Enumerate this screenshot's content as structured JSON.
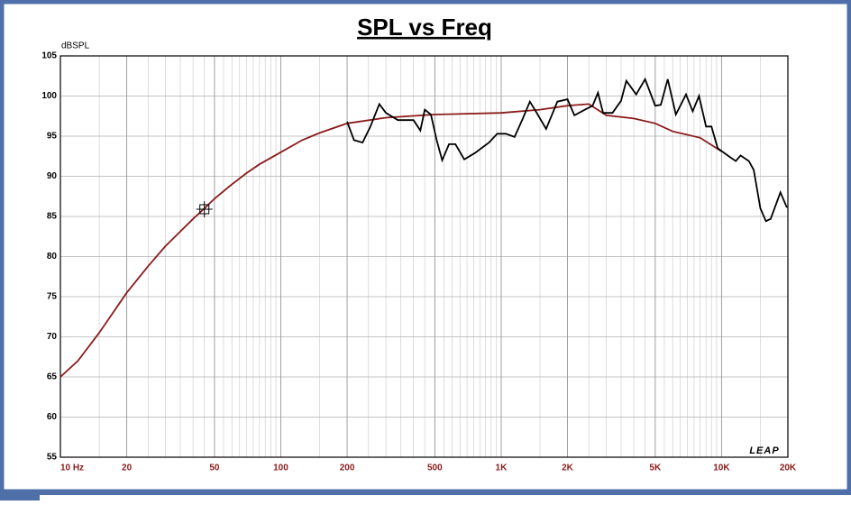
{
  "chart_data": {
    "type": "line",
    "title": "SPL vs Freq",
    "ylabel": "dBSPL",
    "logo": "LEAP",
    "xscale": "log",
    "xlim": [
      10,
      20000
    ],
    "ylim": [
      55,
      105
    ],
    "xticks": [
      {
        "value": 10,
        "label": "10 Hz"
      },
      20,
      50,
      100,
      200,
      500,
      {
        "value": 1000,
        "label": "1K"
      },
      {
        "value": 2000,
        "label": "2K"
      },
      {
        "value": 5000,
        "label": "5K"
      },
      {
        "value": 10000,
        "label": "10K"
      },
      {
        "value": 20000,
        "label": "20K"
      }
    ],
    "yticks": [
      55,
      60,
      65,
      70,
      75,
      80,
      85,
      90,
      95,
      100,
      105
    ],
    "grid": true,
    "minor_grid": true,
    "series": [
      {
        "color": "#8b1a1a",
        "x": [
          10,
          12,
          15,
          20,
          25,
          30,
          40,
          45,
          50,
          60,
          70,
          80,
          100,
          125,
          150,
          200,
          300,
          500,
          1000,
          1500,
          2000,
          2500,
          3000,
          4000,
          5000,
          6000,
          8000,
          10000
        ],
        "values": [
          65,
          67,
          70.5,
          75.5,
          78.8,
          81.3,
          84.7,
          86,
          87.2,
          89,
          90.4,
          91.5,
          93,
          94.5,
          95.4,
          96.6,
          97.3,
          97.7,
          97.9,
          98.3,
          98.8,
          99,
          97.6,
          97.2,
          96.6,
          95.6,
          94.8,
          93.1
        ]
      },
      {
        "color": "#000000",
        "x": [
          200,
          215,
          235,
          255,
          280,
          300,
          340,
          400,
          430,
          450,
          480,
          510,
          540,
          580,
          620,
          680,
          760,
          880,
          960,
          1050,
          1150,
          1250,
          1350,
          1450,
          1600,
          1800,
          2000,
          2150,
          2400,
          2600,
          2750,
          2900,
          3200,
          3500,
          3700,
          4100,
          4500,
          5000,
          5300,
          5700,
          6200,
          6900,
          7400,
          7900,
          8500,
          9000,
          9600,
          10900,
          11600,
          12200,
          13300,
          14000,
          15000,
          15900,
          16700,
          18500,
          19800
        ],
        "values": [
          96.8,
          94.5,
          94.2,
          96.2,
          99,
          97.9,
          97,
          97,
          95.7,
          98.3,
          97.7,
          94.5,
          92,
          94,
          94,
          92.1,
          92.9,
          94.2,
          95.3,
          95.3,
          94.9,
          97.1,
          99.3,
          97.9,
          95.9,
          99.3,
          99.6,
          97.6,
          98.3,
          98.8,
          100.4,
          97.9,
          97.9,
          99.4,
          101.9,
          100.2,
          102.1,
          98.8,
          98.9,
          102.1,
          97.7,
          100.2,
          98.1,
          100,
          96.2,
          96.2,
          93.5,
          92.4,
          91.9,
          92.6,
          91.9,
          90.8,
          86,
          84.4,
          84.7,
          88,
          86.1
        ]
      }
    ],
    "cursor": {
      "x": 45,
      "y": 85.9
    }
  }
}
